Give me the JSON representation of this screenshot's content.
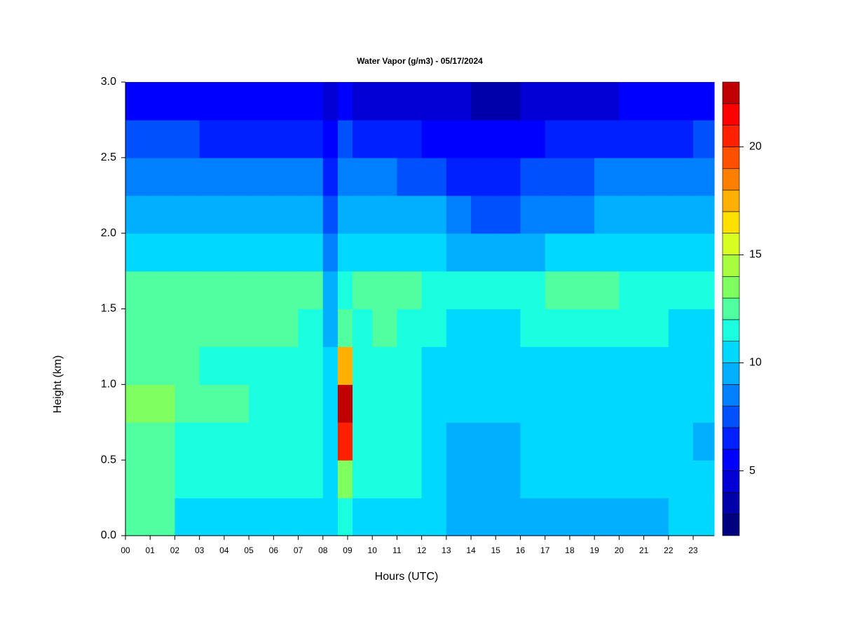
{
  "chart_data": {
    "type": "heatmap",
    "title": "Water Vapor (g/m3) - 05/17/2024",
    "xlabel": "Hours (UTC)",
    "ylabel": "Height (km)",
    "x": [
      0,
      1,
      2,
      3,
      4,
      5,
      6,
      7,
      8,
      8.6,
      9.2,
      10,
      11,
      12,
      13,
      14,
      15,
      16,
      17,
      18,
      19,
      20,
      21,
      22,
      23,
      23.85
    ],
    "y": [
      0,
      0.25,
      0.5,
      0.75,
      1.0,
      1.25,
      1.5,
      1.75,
      2.0,
      2.25,
      2.5,
      2.75,
      3.0
    ],
    "z": [
      [
        12,
        12,
        10.5,
        10.5,
        10.5,
        10.5,
        10.5,
        10.5,
        10,
        11,
        10.5,
        10.5,
        10.5,
        10,
        9,
        9,
        9,
        9,
        9.5,
        9.5,
        9.5,
        9.5,
        9.5,
        10,
        10.5
      ],
      [
        12.5,
        12.5,
        11.5,
        11.5,
        11.5,
        11,
        11,
        11,
        10.5,
        13,
        11,
        11.5,
        11,
        10.5,
        9.5,
        9.5,
        9.5,
        10,
        10.5,
        10.5,
        10.5,
        10.5,
        10.5,
        10.5,
        10
      ],
      [
        12,
        12,
        11.5,
        11.5,
        11.5,
        11,
        11,
        11,
        10.5,
        20,
        11,
        11.5,
        11,
        10.5,
        9.5,
        9.5,
        9.5,
        10,
        10.5,
        10.5,
        10.5,
        10.5,
        10.5,
        10.5,
        9.5
      ],
      [
        13,
        13,
        12,
        12,
        12,
        11.5,
        11.5,
        11,
        10.5,
        22,
        11,
        11.5,
        11,
        10.5,
        10,
        10,
        10,
        10,
        10.5,
        10.5,
        10.5,
        10.5,
        10.5,
        10.5,
        10
      ],
      [
        12.5,
        12.5,
        12,
        11.5,
        11.5,
        11.5,
        11.5,
        11,
        10,
        17,
        11,
        11.5,
        11,
        10.5,
        10,
        10,
        10,
        10,
        10.5,
        10.5,
        10.5,
        10.5,
        10.5,
        10.5,
        10
      ],
      [
        12,
        12,
        12,
        12,
        12,
        12,
        12,
        11.5,
        9.5,
        12,
        11.5,
        12,
        11.5,
        11,
        10.5,
        10.5,
        10.5,
        11,
        11.5,
        11.5,
        11.5,
        11,
        11,
        10.5,
        10.5
      ],
      [
        12,
        12,
        12,
        12,
        12,
        12,
        12,
        12,
        9,
        11.5,
        12,
        12,
        12,
        11.5,
        11,
        11,
        11,
        11,
        12,
        12,
        12,
        11.5,
        11,
        11,
        11
      ],
      [
        10.5,
        10.5,
        10.5,
        10.5,
        10.5,
        10.5,
        10.5,
        10.5,
        8,
        10.5,
        10.5,
        10.5,
        10.5,
        10,
        9.5,
        9.5,
        9.5,
        9.5,
        10,
        10,
        10,
        10,
        10,
        10,
        10
      ],
      [
        9.5,
        9.5,
        9.5,
        9.5,
        9.5,
        9.5,
        9.5,
        9.5,
        7,
        9,
        9.5,
        9.5,
        9,
        9,
        8,
        7.5,
        7.5,
        8,
        8.5,
        8.5,
        9,
        9,
        9,
        9,
        9
      ],
      [
        8.5,
        8.5,
        8.5,
        8.5,
        8.5,
        8,
        8,
        8,
        6,
        8,
        8,
        8,
        7.5,
        7,
        6.5,
        6.5,
        6.5,
        7,
        7.5,
        7.5,
        8,
        8,
        8,
        8,
        8.5
      ],
      [
        7,
        7,
        7,
        6.5,
        6.5,
        6.5,
        6.5,
        6.5,
        5,
        7,
        6,
        6,
        6,
        5.5,
        5,
        5,
        5,
        5.5,
        6,
        6,
        6,
        6.5,
        6.5,
        6.5,
        7
      ],
      [
        5.5,
        5.5,
        5.5,
        5,
        5,
        5,
        5,
        5,
        4.5,
        5.5,
        4.5,
        4.5,
        4.5,
        4,
        4,
        3.5,
        3.5,
        4,
        4.5,
        4.5,
        4.5,
        5,
        5,
        5,
        5.5
      ]
    ],
    "xlim": [
      0,
      23.85
    ],
    "ylim": [
      0,
      3
    ],
    "xticks": [
      {
        "value": 0,
        "label": "00"
      },
      {
        "value": 1,
        "label": "01"
      },
      {
        "value": 2,
        "label": "02"
      },
      {
        "value": 3,
        "label": "03"
      },
      {
        "value": 4,
        "label": "04"
      },
      {
        "value": 5,
        "label": "05"
      },
      {
        "value": 6,
        "label": "06"
      },
      {
        "value": 7,
        "label": "07"
      },
      {
        "value": 8,
        "label": "08"
      },
      {
        "value": 9,
        "label": "09"
      },
      10,
      11,
      12,
      13,
      14,
      15,
      16,
      17,
      18,
      19,
      20,
      21,
      22,
      23
    ],
    "yticks": [
      {
        "value": 0,
        "label": "0.0"
      },
      0.5,
      {
        "value": 1,
        "label": "1.0"
      },
      1.5,
      {
        "value": 2,
        "label": "2.0"
      },
      2.5,
      {
        "value": 3,
        "label": "3.0"
      }
    ],
    "levels": [
      2,
      3,
      4,
      5,
      6,
      7,
      8,
      9,
      10,
      11,
      12,
      13,
      14,
      15,
      16,
      17,
      18,
      19,
      20,
      21,
      22,
      23
    ],
    "colors": [
      "#00007f",
      "#0000aa",
      "#0000d4",
      "#0000ff",
      "#0020ff",
      "#0050ff",
      "#0080ff",
      "#00b0ff",
      "#00d8ff",
      "#1affe0",
      "#50ffa0",
      "#80ff60",
      "#a8ff40",
      "#d8ff20",
      "#ffe000",
      "#ffb000",
      "#ff8000",
      "#ff5000",
      "#ff2000",
      "#ff0000",
      "#c00000",
      "#800000"
    ],
    "colorbar_ticks": [
      5,
      10,
      15,
      20
    ]
  }
}
